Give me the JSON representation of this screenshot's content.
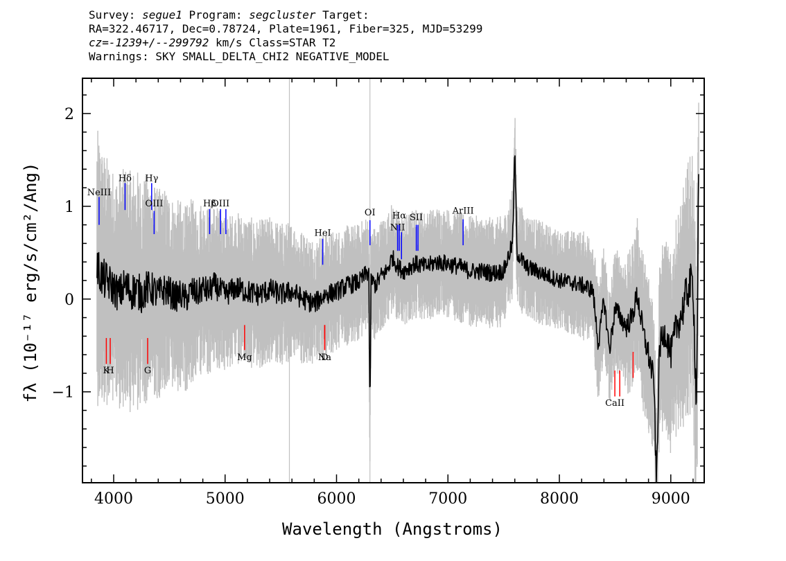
{
  "header": {
    "survey_label": "Survey: ",
    "survey_value": "segue1",
    "program_label": " Program: ",
    "program_value": "segcluster",
    "target_label": " Target:",
    "coords_line": "RA=322.46717, Dec=0.78724, Plate=1961, Fiber=325, MJD=53299",
    "cz_value": "cz=-1239+/--299792",
    "cz_rest": " km/s Class=STAR T2",
    "warnings_line": "Warnings: SKY SMALL_DELTA_CHI2 NEGATIVE_MODEL"
  },
  "colors": {
    "flux": "#000000",
    "error": "#c0c0c0",
    "emission": "#0000ff",
    "absorption": "#ff0000",
    "axes": "#000000"
  },
  "chart_data": {
    "type": "line",
    "title": "",
    "xlabel": "Wavelength (Angstroms)",
    "ylabel": "fλ (10⁻¹⁷ erg/s/cm²/Ang)",
    "xlim": [
      3720,
      9300
    ],
    "ylim": [
      -1.98,
      2.38
    ],
    "grid": false,
    "x_ticks": [
      4000,
      5000,
      6000,
      7000,
      8000,
      9000
    ],
    "x_tick_labels": [
      "4000",
      "5000",
      "6000",
      "7000",
      "8000",
      "9000"
    ],
    "y_ticks": [
      -1,
      0,
      1,
      2
    ],
    "y_tick_labels": [
      "−1",
      "0",
      "1",
      "2"
    ],
    "series": [
      {
        "role": "flux",
        "x": [
          3850,
          3900,
          3950,
          4000,
          4050,
          4100,
          4150,
          4200,
          4250,
          4300,
          4350,
          4400,
          4450,
          4500,
          4550,
          4600,
          4650,
          4700,
          4750,
          4800,
          4850,
          4900,
          4950,
          5000,
          5100,
          5200,
          5300,
          5400,
          5500,
          5600,
          5700,
          5800,
          5900,
          6000,
          6100,
          6200,
          6250,
          6290,
          6300,
          6310,
          6350,
          6400,
          6450,
          6500,
          6550,
          6600,
          6700,
          6800,
          6900,
          7000,
          7100,
          7200,
          7300,
          7400,
          7500,
          7580,
          7600,
          7620,
          7700,
          7800,
          7900,
          8000,
          8100,
          8200,
          8300,
          8350,
          8400,
          8450,
          8500,
          8600,
          8650,
          8700,
          8750,
          8800,
          8850,
          8870,
          8900,
          8950,
          9000,
          9050,
          9100,
          9150,
          9200,
          9230,
          9250
        ],
        "y": [
          0.35,
          0.22,
          0.18,
          0.12,
          0.05,
          0.15,
          0.08,
          0.1,
          0.05,
          0.12,
          0.1,
          0.05,
          0.1,
          0.08,
          0.02,
          0.05,
          0.0,
          0.1,
          0.05,
          0.12,
          0.08,
          0.15,
          0.1,
          0.05,
          0.12,
          0.08,
          0.05,
          0.1,
          0.05,
          0.08,
          0.0,
          -0.05,
          0.05,
          0.08,
          0.15,
          0.18,
          0.25,
          0.3,
          -1.35,
          0.2,
          0.15,
          0.25,
          0.3,
          0.45,
          0.35,
          0.3,
          0.38,
          0.35,
          0.4,
          0.38,
          0.35,
          0.3,
          0.3,
          0.28,
          0.3,
          0.6,
          1.6,
          0.5,
          0.35,
          0.3,
          0.25,
          0.2,
          0.18,
          0.15,
          0.1,
          -0.5,
          0.0,
          -0.55,
          -0.1,
          -0.3,
          -0.2,
          0.05,
          -0.35,
          -0.6,
          -0.9,
          -2.0,
          -0.5,
          -0.35,
          -0.6,
          -0.3,
          -0.15,
          0.1,
          0.2,
          -1.2,
          1.3
        ]
      },
      {
        "role": "error",
        "x": [
          3850,
          4000,
          4200,
          4400,
          4600,
          4800,
          5000,
          5500,
          6000,
          6500,
          7000,
          7500,
          8000,
          8500,
          9000,
          9250
        ],
        "y": [
          1.25,
          1.05,
          1.1,
          0.95,
          0.85,
          0.8,
          0.7,
          0.65,
          0.55,
          0.5,
          0.5,
          0.5,
          0.45,
          0.55,
          0.9,
          1.3
        ]
      }
    ],
    "spectral_lines": [
      {
        "label": "NeIII",
        "x": 3869,
        "y0": 0.8,
        "y1": 1.1,
        "type": "emission",
        "label_y": 1.12
      },
      {
        "label": "Hδ",
        "x": 4102,
        "y0": 0.96,
        "y1": 1.25,
        "type": "emission",
        "label_y": 1.27
      },
      {
        "label": "Hγ",
        "x": 4341,
        "y0": 0.96,
        "y1": 1.25,
        "type": "emission",
        "label_y": 1.27
      },
      {
        "label": "OIII",
        "x": 4363,
        "y0": 0.7,
        "y1": 0.95,
        "type": "emission",
        "label_y": 1.0
      },
      {
        "label": "Hβ",
        "x": 4861,
        "y0": 0.7,
        "y1": 0.97,
        "type": "emission",
        "label_y": 1.0
      },
      {
        "label": "OIII",
        "x": 4959,
        "y0": 0.7,
        "y1": 0.97,
        "type": "emission",
        "label_y": 1.0
      },
      {
        "label": "OIII",
        "x": 5007,
        "y0": 0.7,
        "y1": 0.97,
        "type": "emission",
        "label_y": 1.0
      },
      {
        "label": "HeI",
        "x": 5876,
        "y0": 0.37,
        "y1": 0.65,
        "type": "emission",
        "label_y": 0.68
      },
      {
        "label": "OI",
        "x": 6300,
        "y0": 0.58,
        "y1": 0.85,
        "type": "emission",
        "label_y": 0.9
      },
      {
        "label": "NII",
        "x": 6548,
        "y0": 0.52,
        "y1": 0.8,
        "type": "emission",
        "label_y": 0.74
      },
      {
        "label": "Hα",
        "x": 6563,
        "y0": 0.52,
        "y1": 0.8,
        "type": "emission",
        "label_y": 0.87
      },
      {
        "label": "NII",
        "x": 6583,
        "y0": 0.43,
        "y1": 0.72,
        "type": "emission",
        "label_y": 0.74
      },
      {
        "label": "SII",
        "x": 6716,
        "y0": 0.52,
        "y1": 0.8,
        "type": "emission",
        "label_y": 0.85
      },
      {
        "label": "SII",
        "x": 6731,
        "y0": 0.52,
        "y1": 0.8,
        "type": "emission",
        "label_y": 0.85
      },
      {
        "label": "NII",
        "x": 6583,
        "y0": 0.43,
        "y1": 0.72,
        "type": "emission",
        "label_y": 0.74
      },
      {
        "label": "ArIII",
        "x": 7136,
        "y0": 0.58,
        "y1": 0.86,
        "type": "emission",
        "label_y": 0.92
      },
      {
        "label": "K",
        "x": 3934,
        "y0": -0.7,
        "y1": -0.42,
        "type": "absorption",
        "label_y": -0.8
      },
      {
        "label": "H",
        "x": 3969,
        "y0": -0.7,
        "y1": -0.42,
        "type": "absorption",
        "label_y": -0.8
      },
      {
        "label": "G",
        "x": 4305,
        "y0": -0.7,
        "y1": -0.42,
        "type": "absorption",
        "label_y": -0.8
      },
      {
        "label": "Mg",
        "x": 5175,
        "y0": -0.55,
        "y1": -0.28,
        "type": "absorption",
        "label_y": -0.66
      },
      {
        "label": "Na",
        "x": 5894,
        "y0": -0.55,
        "y1": -0.28,
        "type": "absorption",
        "label_y": -0.66
      },
      {
        "label": "D",
        "x": 5894,
        "y0": -0.55,
        "y1": -0.28,
        "type": "absorption",
        "label_y": -0.66
      },
      {
        "label": "CaII",
        "x": 8498,
        "y0": -1.05,
        "y1": -0.77,
        "type": "absorption",
        "label_y": -1.15
      },
      {
        "label": "CaII",
        "x": 8542,
        "y0": -1.05,
        "y1": -0.77,
        "type": "absorption",
        "label_y": -1.15
      },
      {
        "label": "CaII",
        "x": 8662,
        "y0": -0.85,
        "y1": -0.57,
        "type": "absorption",
        "label_y": -1.15
      }
    ]
  }
}
